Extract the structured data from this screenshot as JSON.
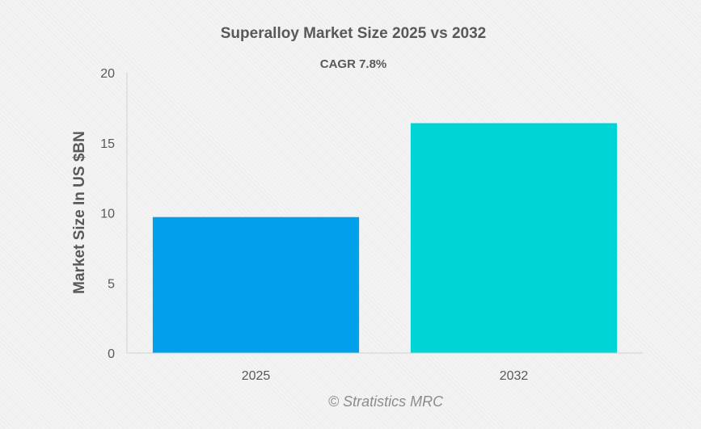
{
  "chart_data": {
    "type": "bar",
    "title": "Superalloy Market Size 2025 vs 2032",
    "subtitle": "CAGR 7.8%",
    "xlabel": "",
    "ylabel": "Market Size In US $BN",
    "categories": [
      "2025",
      "2032"
    ],
    "values": [
      9.7,
      16.4
    ],
    "colors": [
      "#00a0ea",
      "#00d4d4"
    ],
    "ylim": [
      0,
      20
    ],
    "yticks": [
      0,
      5,
      10,
      15,
      20
    ],
    "grid": false,
    "legend": "none"
  },
  "watermark": "© Stratistics MRC"
}
